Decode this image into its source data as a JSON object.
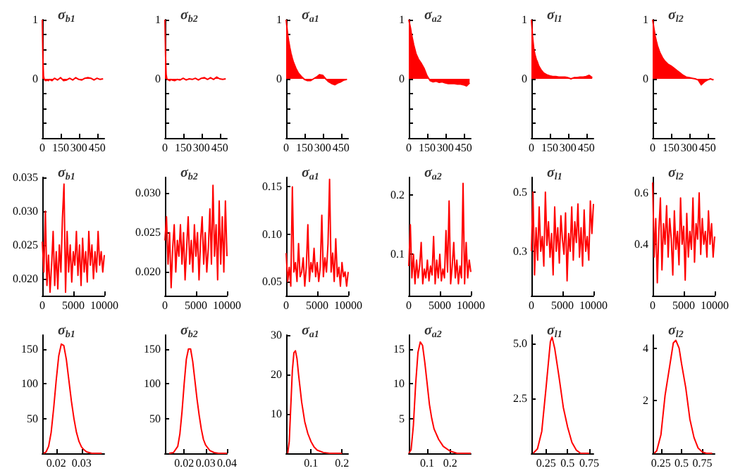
{
  "chart_data": [
    {
      "type": "area",
      "title": "σ$_{b1}$",
      "x": [
        0,
        5,
        10,
        15,
        20,
        30,
        40,
        50,
        60,
        80,
        100,
        125,
        150,
        175,
        200,
        225,
        250,
        275,
        300,
        325,
        350,
        375,
        400,
        425,
        450,
        475,
        500
      ],
      "xlim": [
        0,
        510
      ],
      "xticks": [
        0,
        150,
        300,
        450
      ],
      "ylim": [
        -1,
        1
      ],
      "yticks": [
        {
          "value": -1,
          "label": null
        },
        {
          "value": -0.75,
          "label": null
        },
        {
          "value": -0.5,
          "label": null
        },
        {
          "value": -0.25,
          "label": null
        },
        0,
        {
          "value": 0.25,
          "label": null
        },
        {
          "value": 0.5,
          "label": null
        },
        {
          "value": 0.75,
          "label": null
        },
        1
      ],
      "series": [
        {
          "color": "#ff0000",
          "values": [
            1,
            0.35,
            0.05,
            0,
            -0.02,
            -0.03,
            -0.02,
            -0.03,
            -0.01,
            -0.03,
            0.01,
            -0.02,
            0.02,
            -0.03,
            -0.02,
            0.01,
            -0.02,
            0.02,
            -0.01,
            -0.02,
            0.01,
            0.02,
            0.01,
            -0.02,
            0.01,
            -0.01,
            0
          ]
        }
      ]
    },
    {
      "type": "area",
      "title": "σ$_{b2}$",
      "x": [
        0,
        5,
        10,
        15,
        20,
        30,
        40,
        50,
        60,
        80,
        100,
        125,
        150,
        175,
        200,
        225,
        250,
        275,
        300,
        325,
        350,
        375,
        400,
        425,
        450,
        475,
        500
      ],
      "xlim": [
        0,
        510
      ],
      "xticks": [
        0,
        150,
        300,
        450
      ],
      "ylim": [
        -1,
        1
      ],
      "yticks": [
        {
          "value": -1,
          "label": null
        },
        {
          "value": -0.75,
          "label": null
        },
        {
          "value": -0.5,
          "label": null
        },
        {
          "value": -0.25,
          "label": null
        },
        0,
        {
          "value": 0.25,
          "label": null
        },
        {
          "value": 0.5,
          "label": null
        },
        {
          "value": 0.75,
          "label": null
        },
        1
      ],
      "series": [
        {
          "color": "#ff0000",
          "values": [
            1,
            0.4,
            0.08,
            0.01,
            -0.01,
            -0.02,
            -0.03,
            -0.01,
            -0.02,
            -0.03,
            -0.01,
            -0.02,
            0.01,
            -0.02,
            0,
            -0.01,
            0.01,
            -0.02,
            0.01,
            0.02,
            -0.01,
            0.02,
            -0.01,
            0.03,
            0,
            -0.01,
            0
          ]
        }
      ]
    },
    {
      "type": "area",
      "title": "σ$_{a1}$",
      "x": [
        0,
        5,
        10,
        15,
        20,
        30,
        40,
        50,
        60,
        80,
        100,
        125,
        150,
        175,
        200,
        225,
        250,
        275,
        300,
        325,
        350,
        375,
        400,
        425,
        450,
        475,
        500
      ],
      "xlim": [
        0,
        510
      ],
      "xticks": [
        0,
        150,
        300,
        450
      ],
      "ylim": [
        -1,
        1
      ],
      "yticks": [
        {
          "value": -1,
          "label": null
        },
        {
          "value": -0.75,
          "label": null
        },
        {
          "value": -0.5,
          "label": null
        },
        {
          "value": -0.25,
          "label": null
        },
        0,
        {
          "value": 0.25,
          "label": null
        },
        {
          "value": 0.5,
          "label": null
        },
        {
          "value": 0.75,
          "label": null
        },
        1
      ],
      "series": [
        {
          "color": "#ff0000",
          "values": [
            1,
            0.9,
            0.8,
            0.72,
            0.65,
            0.53,
            0.43,
            0.35,
            0.28,
            0.18,
            0.1,
            0.04,
            -0.01,
            -0.03,
            -0.03,
            0,
            0.03,
            0.07,
            0.06,
            0,
            -0.05,
            -0.08,
            -0.1,
            -0.07,
            -0.05,
            -0.02,
            -0.01
          ]
        }
      ]
    },
    {
      "type": "area",
      "title": "σ$_{a2}$",
      "x": [
        0,
        5,
        10,
        15,
        20,
        30,
        40,
        50,
        60,
        80,
        100,
        125,
        150,
        175,
        200,
        225,
        250,
        275,
        300,
        325,
        350,
        375,
        400,
        425,
        450,
        475,
        500
      ],
      "xlim": [
        0,
        510
      ],
      "xticks": [
        0,
        150,
        300,
        450
      ],
      "ylim": [
        -1,
        1
      ],
      "yticks": [
        {
          "value": -1,
          "label": null
        },
        {
          "value": -0.75,
          "label": null
        },
        {
          "value": -0.5,
          "label": null
        },
        {
          "value": -0.25,
          "label": null
        },
        0,
        {
          "value": 0.25,
          "label": null
        },
        {
          "value": 0.5,
          "label": null
        },
        {
          "value": 0.75,
          "label": null
        },
        1
      ],
      "series": [
        {
          "color": "#ff0000",
          "values": [
            1,
            0.95,
            0.9,
            0.85,
            0.78,
            0.68,
            0.58,
            0.5,
            0.42,
            0.33,
            0.27,
            0.18,
            0.05,
            -0.03,
            -0.05,
            -0.04,
            -0.06,
            -0.05,
            -0.07,
            -0.08,
            -0.08,
            -0.08,
            -0.09,
            -0.09,
            -0.1,
            -0.12,
            -0.07
          ]
        }
      ]
    },
    {
      "type": "area",
      "title": "σ$_{l1}$",
      "x": [
        0,
        5,
        10,
        15,
        20,
        30,
        40,
        50,
        60,
        80,
        100,
        125,
        150,
        175,
        200,
        225,
        250,
        275,
        300,
        325,
        350,
        375,
        400,
        425,
        450,
        475,
        500
      ],
      "xlim": [
        0,
        510
      ],
      "xticks": [
        0,
        150,
        300,
        450
      ],
      "ylim": [
        -1,
        1
      ],
      "yticks": [
        {
          "value": -1,
          "label": null
        },
        {
          "value": -0.75,
          "label": null
        },
        {
          "value": -0.5,
          "label": null
        },
        {
          "value": -0.25,
          "label": null
        },
        0,
        {
          "value": 0.25,
          "label": null
        },
        {
          "value": 0.5,
          "label": null
        },
        {
          "value": 0.75,
          "label": null
        },
        1
      ],
      "series": [
        {
          "color": "#ff0000",
          "values": [
            1,
            0.85,
            0.7,
            0.6,
            0.5,
            0.4,
            0.33,
            0.28,
            0.22,
            0.15,
            0.1,
            0.07,
            0.05,
            0.04,
            0.04,
            0.03,
            0.03,
            0.03,
            0.02,
            0,
            0.02,
            0.02,
            0.03,
            0.03,
            0.04,
            0.06,
            0.02
          ]
        }
      ]
    },
    {
      "type": "area",
      "title": "σ$_{l2}$",
      "x": [
        0,
        5,
        10,
        15,
        20,
        30,
        40,
        50,
        60,
        80,
        100,
        125,
        150,
        175,
        200,
        225,
        250,
        275,
        300,
        325,
        350,
        375,
        400,
        425,
        450,
        475,
        500
      ],
      "xlim": [
        0,
        510
      ],
      "xticks": [
        0,
        150,
        300,
        450
      ],
      "ylim": [
        -1,
        1
      ],
      "yticks": [
        {
          "value": -1,
          "label": null
        },
        {
          "value": -0.75,
          "label": null
        },
        {
          "value": -0.5,
          "label": null
        },
        {
          "value": -0.25,
          "label": null
        },
        0,
        {
          "value": 0.25,
          "label": null
        },
        {
          "value": 0.5,
          "label": null
        },
        {
          "value": 0.75,
          "label": null
        },
        1
      ],
      "series": [
        {
          "color": "#ff0000",
          "values": [
            1,
            0.93,
            0.86,
            0.8,
            0.73,
            0.64,
            0.56,
            0.5,
            0.44,
            0.36,
            0.3,
            0.25,
            0.22,
            0.18,
            0.14,
            0.1,
            0.06,
            0.03,
            0.02,
            0.01,
            0,
            -0.02,
            -0.1,
            -0.05,
            -0.02,
            0,
            -0.02
          ]
        }
      ]
    },
    {
      "type": "line",
      "title": "σ$_{b1}$",
      "x": [
        0,
        250,
        500,
        750,
        1000,
        1250,
        1500,
        1750,
        2000,
        2250,
        2500,
        2750,
        3000,
        3250,
        3500,
        3750,
        4000,
        4250,
        4500,
        4750,
        5000,
        5250,
        5500,
        5750,
        6000,
        6250,
        6500,
        6750,
        7000,
        7250,
        7500,
        7750,
        8000,
        8250,
        8500,
        8750,
        9000,
        9250,
        9500,
        9750,
        10000
      ],
      "xlim": [
        0,
        10000
      ],
      "xticks": [
        0,
        5000,
        10000
      ],
      "ylim": [
        0.0175,
        0.035
      ],
      "yticks": [
        {
          "value": 0.02,
          "label": "0.020"
        },
        {
          "value": 0.025,
          "label": "0.025"
        },
        {
          "value": 0.03,
          "label": "0.030"
        },
        {
          "value": 0.035,
          "label": "0.035"
        }
      ],
      "series": [
        {
          "color": "#ff0000",
          "values": [
            0.0255,
            0.021,
            0.03,
            0.019,
            0.0235,
            0.018,
            0.022,
            0.027,
            0.019,
            0.024,
            0.0185,
            0.025,
            0.021,
            0.029,
            0.034,
            0.018,
            0.027,
            0.021,
            0.025,
            0.0195,
            0.024,
            0.022,
            0.027,
            0.0205,
            0.025,
            0.019,
            0.026,
            0.021,
            0.024,
            0.0195,
            0.027,
            0.022,
            0.025,
            0.02,
            0.024,
            0.021,
            0.027,
            0.022,
            0.024,
            0.021,
            0.0235
          ]
        }
      ]
    },
    {
      "type": "line",
      "title": "σ$_{b2}$",
      "x": [
        0,
        250,
        500,
        750,
        1000,
        1250,
        1500,
        1750,
        2000,
        2250,
        2500,
        2750,
        3000,
        3250,
        3500,
        3750,
        4000,
        4250,
        4500,
        4750,
        5000,
        5250,
        5500,
        5750,
        6000,
        6250,
        6500,
        6750,
        7000,
        7250,
        7500,
        7750,
        8000,
        8250,
        8500,
        8750,
        9000,
        9250,
        9500,
        9750,
        10000
      ],
      "xlim": [
        0,
        10000
      ],
      "xticks": [
        0,
        5000,
        10000
      ],
      "ylim": [
        0.017,
        0.032
      ],
      "yticks": [
        {
          "value": 0.02,
          "label": "0.020"
        },
        {
          "value": 0.025,
          "label": "0.025"
        },
        {
          "value": 0.03,
          "label": "0.030"
        }
      ],
      "series": [
        {
          "color": "#ff0000",
          "values": [
            0.024,
            0.027,
            0.021,
            0.025,
            0.018,
            0.023,
            0.026,
            0.02,
            0.024,
            0.022,
            0.026,
            0.021,
            0.025,
            0.019,
            0.023,
            0.027,
            0.021,
            0.024,
            0.02,
            0.026,
            0.022,
            0.025,
            0.019,
            0.024,
            0.027,
            0.021,
            0.025,
            0.02,
            0.023,
            0.028,
            0.021,
            0.031,
            0.022,
            0.026,
            0.019,
            0.029,
            0.021,
            0.027,
            0.02,
            0.029,
            0.022
          ]
        }
      ]
    },
    {
      "type": "line",
      "title": "σ$_{a1}$",
      "x": [
        0,
        250,
        500,
        750,
        1000,
        1250,
        1500,
        1750,
        2000,
        2250,
        2500,
        2750,
        3000,
        3250,
        3500,
        3750,
        4000,
        4250,
        4500,
        4750,
        5000,
        5250,
        5500,
        5750,
        6000,
        6250,
        6500,
        6750,
        7000,
        7250,
        7500,
        7750,
        8000,
        8250,
        8500,
        8750,
        9000,
        9250,
        9500,
        9750,
        10000
      ],
      "xlim": [
        0,
        10000
      ],
      "xticks": [
        0,
        5000,
        10000
      ],
      "ylim": [
        0.035,
        0.16
      ],
      "yticks": [
        {
          "value": 0.05,
          "label": "0.05"
        },
        {
          "value": 0.1,
          "label": "0.10"
        },
        {
          "value": 0.15,
          "label": "0.15"
        }
      ],
      "series": [
        {
          "color": "#ff0000",
          "values": [
            0.08,
            0.05,
            0.065,
            0.045,
            0.15,
            0.06,
            0.07,
            0.05,
            0.09,
            0.055,
            0.06,
            0.075,
            0.045,
            0.065,
            0.11,
            0.05,
            0.07,
            0.06,
            0.085,
            0.055,
            0.07,
            0.05,
            0.065,
            0.12,
            0.055,
            0.075,
            0.06,
            0.09,
            0.158,
            0.06,
            0.08,
            0.05,
            0.095,
            0.055,
            0.065,
            0.045,
            0.07,
            0.055,
            0.06,
            0.045,
            0.06
          ]
        }
      ]
    },
    {
      "type": "line",
      "title": "σ$_{a2}$",
      "x": [
        0,
        250,
        500,
        750,
        1000,
        1250,
        1500,
        1750,
        2000,
        2250,
        2500,
        2750,
        3000,
        3250,
        3500,
        3750,
        4000,
        4250,
        4500,
        4750,
        5000,
        5250,
        5500,
        5750,
        6000,
        6250,
        6500,
        6750,
        7000,
        7250,
        7500,
        7750,
        8000,
        8250,
        8500,
        8750,
        9000,
        9250,
        9500,
        9750,
        10000
      ],
      "xlim": [
        0,
        10000
      ],
      "xticks": [
        0,
        5000,
        10000
      ],
      "ylim": [
        0.03,
        0.23
      ],
      "yticks": [
        0.1,
        0.2
      ],
      "series": [
        {
          "color": "#ff0000",
          "values": [
            0.08,
            0.15,
            0.06,
            0.1,
            0.05,
            0.09,
            0.06,
            0.08,
            0.12,
            0.05,
            0.075,
            0.06,
            0.09,
            0.055,
            0.08,
            0.065,
            0.13,
            0.05,
            0.09,
            0.06,
            0.1,
            0.055,
            0.075,
            0.06,
            0.14,
            0.07,
            0.19,
            0.05,
            0.08,
            0.12,
            0.06,
            0.09,
            0.05,
            0.08,
            0.06,
            0.22,
            0.05,
            0.12,
            0.06,
            0.09,
            0.07
          ]
        }
      ]
    },
    {
      "type": "line",
      "title": "σ$_{l1}$",
      "x": [
        0,
        250,
        500,
        750,
        1000,
        1250,
        1500,
        1750,
        2000,
        2250,
        2500,
        2750,
        3000,
        3250,
        3500,
        3750,
        4000,
        4250,
        4500,
        4750,
        5000,
        5250,
        5500,
        5750,
        6000,
        6250,
        6500,
        6750,
        7000,
        7250,
        7500,
        7750,
        8000,
        8250,
        8500,
        8750,
        9000,
        9250,
        9500,
        9750,
        10000
      ],
      "xlim": [
        0,
        10000
      ],
      "xticks": [
        0,
        5000,
        10000
      ],
      "ylim": [
        0.15,
        0.55
      ],
      "yticks": [
        0.3,
        0.5
      ],
      "series": [
        {
          "color": "#ff0000",
          "values": [
            0.3,
            0.5,
            0.22,
            0.38,
            0.27,
            0.45,
            0.3,
            0.35,
            0.25,
            0.5,
            0.32,
            0.4,
            0.28,
            0.36,
            0.22,
            0.45,
            0.3,
            0.38,
            0.26,
            0.42,
            0.34,
            0.29,
            0.43,
            0.2,
            0.36,
            0.3,
            0.45,
            0.27,
            0.4,
            0.33,
            0.46,
            0.28,
            0.38,
            0.25,
            0.44,
            0.3,
            0.35,
            0.27,
            0.47,
            0.36,
            0.46
          ]
        }
      ]
    },
    {
      "type": "line",
      "title": "σ$_{l2}$",
      "x": [
        0,
        250,
        500,
        750,
        1000,
        1250,
        1500,
        1750,
        2000,
        2250,
        2500,
        2750,
        3000,
        3250,
        3500,
        3750,
        4000,
        4250,
        4500,
        4750,
        5000,
        5250,
        5500,
        5750,
        6000,
        6250,
        6500,
        6750,
        7000,
        7250,
        7500,
        7750,
        8000,
        8250,
        8500,
        8750,
        9000,
        9250,
        9500,
        9750,
        10000
      ],
      "xlim": [
        0,
        10000
      ],
      "xticks": [
        0,
        5000,
        10000
      ],
      "ylim": [
        0.2,
        0.66
      ],
      "yticks": [
        0.4,
        0.6
      ],
      "series": [
        {
          "color": "#ff0000",
          "values": [
            0.64,
            0.35,
            0.5,
            0.25,
            0.45,
            0.58,
            0.3,
            0.48,
            0.4,
            0.55,
            0.35,
            0.5,
            0.42,
            0.28,
            0.53,
            0.38,
            0.45,
            0.32,
            0.58,
            0.4,
            0.47,
            0.26,
            0.52,
            0.35,
            0.45,
            0.38,
            0.58,
            0.33,
            0.48,
            0.42,
            0.6,
            0.36,
            0.5,
            0.4,
            0.45,
            0.35,
            0.53,
            0.4,
            0.48,
            0.35,
            0.43
          ]
        }
      ]
    },
    {
      "type": "line",
      "title": "σ$_{b1}$",
      "x": [
        0.015,
        0.016,
        0.017,
        0.018,
        0.019,
        0.02,
        0.021,
        0.022,
        0.023,
        0.024,
        0.025,
        0.026,
        0.027,
        0.028,
        0.029,
        0.03,
        0.031,
        0.032,
        0.033,
        0.034,
        0.036,
        0.038
      ],
      "xlim": [
        0.0145,
        0.039
      ],
      "xticks": [
        0.02,
        0.03
      ],
      "ylim": [
        0,
        170
      ],
      "yticks": [
        50,
        100,
        150
      ],
      "series": [
        {
          "color": "#ff0000",
          "values": [
            0,
            2,
            10,
            30,
            65,
            105,
            140,
            157,
            155,
            135,
            105,
            75,
            50,
            30,
            17,
            9,
            5,
            2,
            1,
            0,
            0,
            0
          ]
        }
      ]
    },
    {
      "type": "line",
      "title": "σ$_{b2}$",
      "x": [
        0.013,
        0.015,
        0.017,
        0.018,
        0.019,
        0.02,
        0.021,
        0.022,
        0.023,
        0.024,
        0.025,
        0.026,
        0.027,
        0.028,
        0.029,
        0.03,
        0.032,
        0.034,
        0.036,
        0.04
      ],
      "xlim": [
        0.011,
        0.04
      ],
      "xticks": [
        0.02,
        0.03,
        0.04
      ],
      "ylim": [
        0,
        170
      ],
      "yticks": [
        50,
        100,
        150
      ],
      "series": [
        {
          "color": "#ff0000",
          "values": [
            0,
            1,
            10,
            28,
            60,
            100,
            135,
            150,
            150,
            132,
            105,
            78,
            55,
            35,
            20,
            12,
            4,
            1,
            0,
            0
          ]
        }
      ]
    },
    {
      "type": "line",
      "title": "σ$_{a1}$",
      "x": [
        0.025,
        0.03,
        0.035,
        0.04,
        0.045,
        0.05,
        0.055,
        0.06,
        0.07,
        0.08,
        0.09,
        0.1,
        0.11,
        0.12,
        0.14,
        0.16,
        0.2
      ],
      "xlim": [
        0.02,
        0.22
      ],
      "xticks": [
        0.1,
        0.2
      ],
      "ylim": [
        0,
        30
      ],
      "yticks": [
        10,
        20,
        30
      ],
      "series": [
        {
          "color": "#ff0000",
          "values": [
            0,
            3,
            12,
            21,
            25.5,
            26,
            24,
            20,
            13,
            8,
            5,
            3,
            1.6,
            0.8,
            0.2,
            0,
            0
          ]
        }
      ]
    },
    {
      "type": "line",
      "title": "σ$_{a2}$",
      "x": [
        0.02,
        0.03,
        0.04,
        0.05,
        0.06,
        0.07,
        0.08,
        0.09,
        0.1,
        0.11,
        0.12,
        0.13,
        0.15,
        0.17,
        0.2,
        0.23,
        0.29
      ],
      "xlim": [
        0.02,
        0.29
      ],
      "xticks": [
        0.1,
        0.2
      ],
      "ylim": [
        0,
        17
      ],
      "yticks": [
        5,
        10,
        15
      ],
      "series": [
        {
          "color": "#ff0000",
          "values": [
            0,
            0.5,
            4,
            10,
            14.5,
            16,
            15.5,
            13,
            10,
            7,
            5,
            3.5,
            2,
            1,
            0.3,
            0,
            0
          ]
        }
      ]
    },
    {
      "type": "line",
      "title": "σ$_{l1}$",
      "x": [
        0.1,
        0.15,
        0.2,
        0.25,
        0.3,
        0.32,
        0.35,
        0.4,
        0.45,
        0.5,
        0.55,
        0.6,
        0.65,
        0.75
      ],
      "xlim": [
        0.08,
        0.8
      ],
      "xticks": [
        0.25,
        0.5,
        0.75
      ],
      "ylim": [
        0,
        5.4
      ],
      "yticks": [
        2.5,
        {
          "value": 5,
          "label": "5.0"
        }
      ],
      "series": [
        {
          "color": "#ff0000",
          "values": [
            0,
            0.2,
            1,
            3,
            5.1,
            5.3,
            4.8,
            3.5,
            2.1,
            1.2,
            0.5,
            0.15,
            0,
            0
          ]
        }
      ]
    },
    {
      "type": "line",
      "title": "σ$_{l2}$",
      "x": [
        0.17,
        0.2,
        0.25,
        0.3,
        0.35,
        0.4,
        0.43,
        0.47,
        0.5,
        0.55,
        0.6,
        0.65,
        0.7,
        0.75,
        0.8,
        0.87
      ],
      "xlim": [
        0.15,
        0.9
      ],
      "xticks": [
        0.25,
        0.5,
        0.75
      ],
      "ylim": [
        0,
        4.5
      ],
      "yticks": [
        2,
        4
      ],
      "series": [
        {
          "color": "#ff0000",
          "values": [
            0,
            0.1,
            0.7,
            2.2,
            3.2,
            4.2,
            4.3,
            4,
            3.4,
            2.5,
            1.3,
            0.6,
            0.2,
            0.05,
            0,
            0
          ]
        }
      ]
    }
  ]
}
